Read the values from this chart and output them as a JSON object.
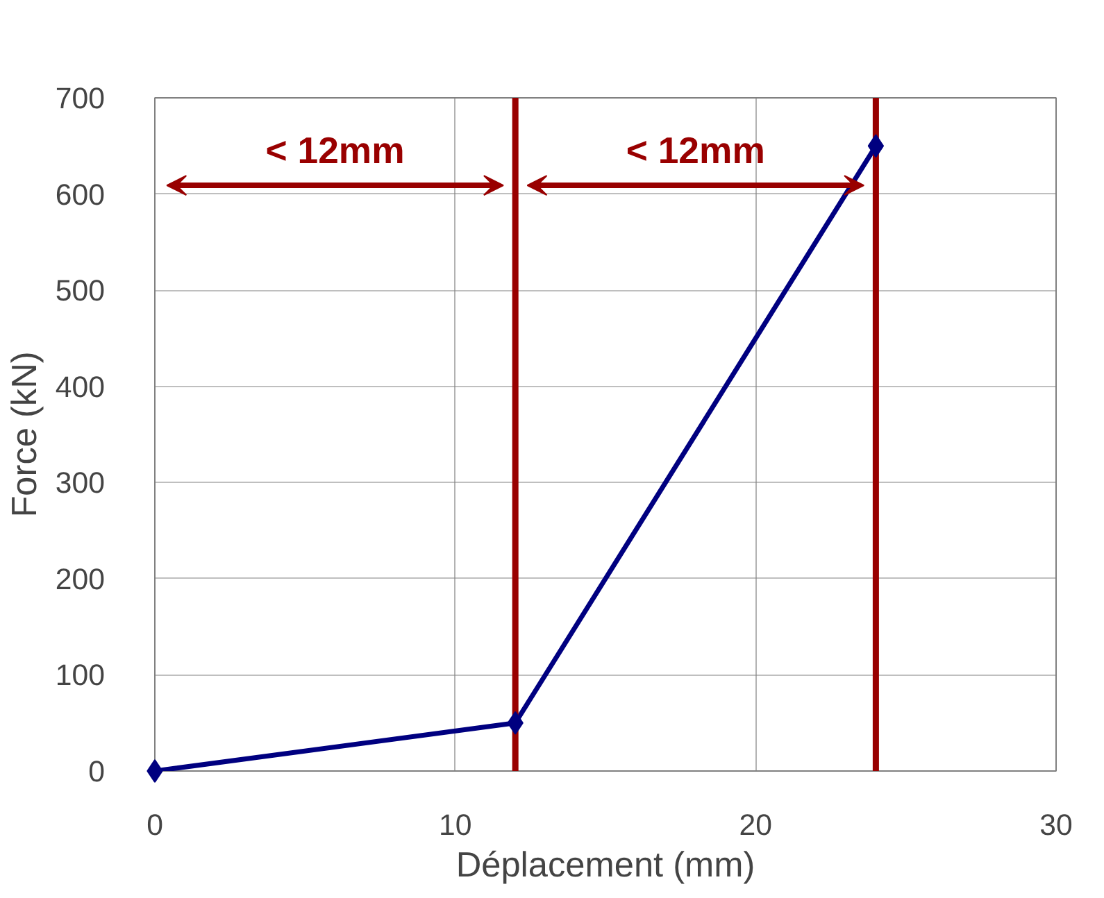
{
  "chart_data": {
    "type": "line",
    "xlabel": "Déplacement (mm)",
    "ylabel": "Force (kN)",
    "x": [
      0,
      12,
      24
    ],
    "series": [
      {
        "color": "#000080",
        "values": [
          0,
          50,
          650
        ]
      }
    ],
    "xlim": [
      0,
      30
    ],
    "xticks": [
      0,
      10,
      20,
      30
    ],
    "ylim": [
      0,
      700
    ],
    "yticks": [
      0,
      100,
      200,
      300,
      400,
      500,
      600,
      700
    ],
    "grid": true,
    "marker": "diamond",
    "line_style": "solid",
    "ref_lines": [
      {
        "axis": "x",
        "value": 12,
        "color": "#990000"
      },
      {
        "axis": "x",
        "value": 24,
        "color": "#990000"
      }
    ],
    "annotations": [
      "< 12mm",
      "< 12mm"
    ]
  }
}
